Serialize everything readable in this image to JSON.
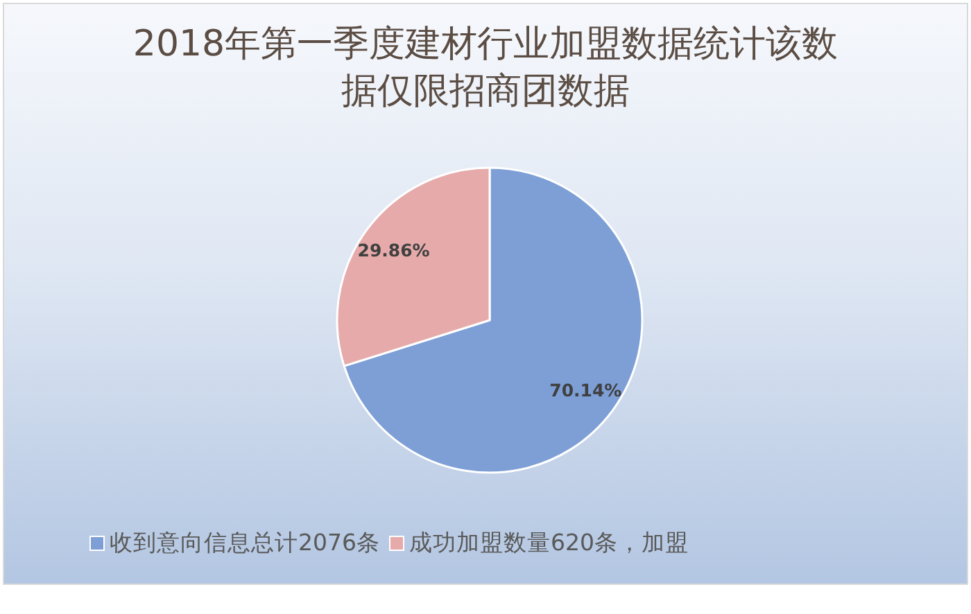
{
  "chart_data": {
    "type": "pie",
    "title": "2018年第一季度建材行业加盟数据统计该数据仅限招商团数据",
    "categories": [
      "收到意向信息总计2076条",
      "成功加盟数量620条，加盟"
    ],
    "values": [
      70.14,
      29.86
    ],
    "colors": [
      "#7d9fd6",
      "#e6aaaa"
    ],
    "value_labels": [
      "70.14%",
      "29.86%"
    ],
    "legend": "bottom"
  }
}
